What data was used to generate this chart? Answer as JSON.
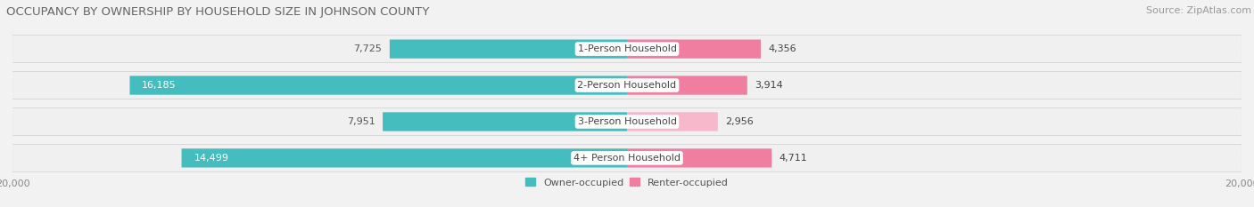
{
  "title": "OCCUPANCY BY OWNERSHIP BY HOUSEHOLD SIZE IN JOHNSON COUNTY",
  "source": "Source: ZipAtlas.com",
  "categories": [
    "1-Person Household",
    "2-Person Household",
    "3-Person Household",
    "4+ Person Household"
  ],
  "owner_values": [
    7725,
    16185,
    7951,
    14499
  ],
  "renter_values": [
    4356,
    3914,
    2956,
    4711
  ],
  "max_value": 20000,
  "owner_color": "#45BCBE",
  "renter_color": "#F07EA0",
  "renter_light_color": "#F7B8CC",
  "background_color": "#F2F2F2",
  "row_bg_color": "#E8E8E8",
  "row_bg_inner_color": "#F8F8F8",
  "title_fontsize": 9.5,
  "axis_label_fontsize": 8,
  "bar_label_fontsize": 8,
  "category_fontsize": 8,
  "legend_fontsize": 8,
  "source_fontsize": 8,
  "bar_height": 0.52,
  "white_label_threshold": 10000
}
